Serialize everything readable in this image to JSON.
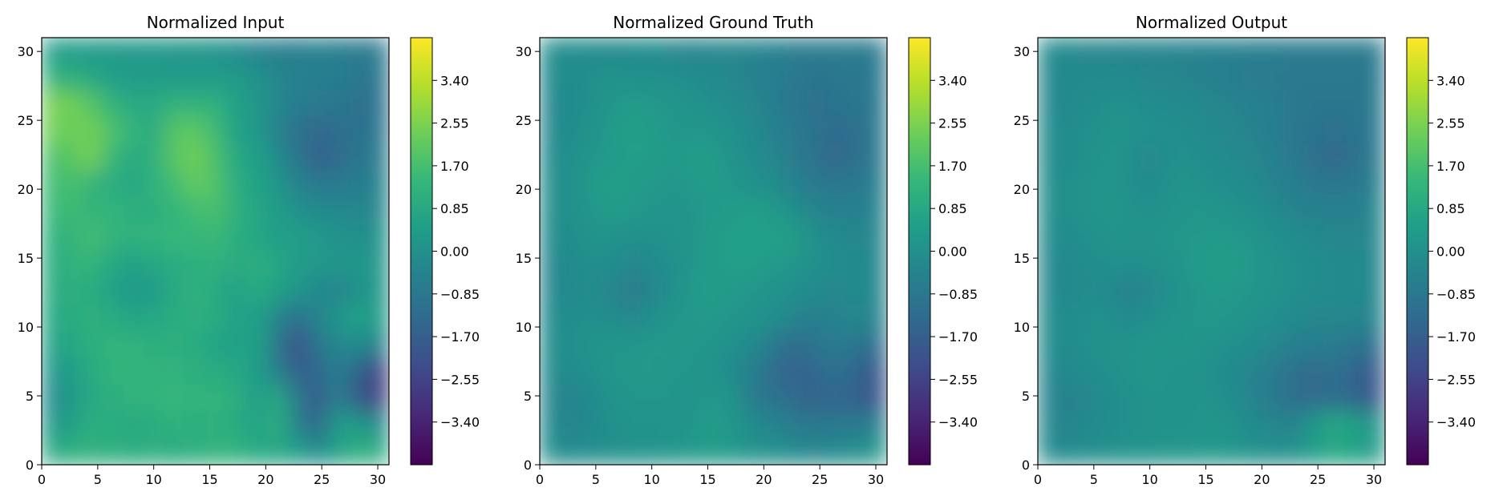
{
  "chart_data": [
    {
      "type": "heatmap",
      "title": "Normalized Input",
      "xlabel": "",
      "ylabel": "",
      "xlim": [
        0,
        31
      ],
      "ylim": [
        0,
        31
      ],
      "xticks": [
        0,
        5,
        10,
        15,
        20,
        25,
        30
      ],
      "yticks": [
        0,
        5,
        10,
        15,
        20,
        25,
        30
      ],
      "colormap": "viridis",
      "colorbar": {
        "range": [
          -4.25,
          4.25
        ],
        "ticks": [
          "3.40",
          "2.55",
          "1.70",
          "0.85",
          "0.00",
          "−0.85",
          "−1.70",
          "−2.55",
          "−3.40"
        ]
      },
      "grid_rows_top_to_bottom": [
        [
          0.4,
          0.4,
          0.3,
          0.3,
          0.2,
          0.3,
          0.2,
          0.2,
          0.1,
          -0.1,
          -0.4,
          -0.6,
          -0.6,
          -0.5,
          -0.6,
          -0.7,
          -0.8
        ],
        [
          1.2,
          1.1,
          0.8,
          0.5,
          0.4,
          0.4,
          0.3,
          0.3,
          0.4,
          0.3,
          0.1,
          -0.3,
          -0.5,
          -0.6,
          -0.6,
          -0.8,
          -0.9
        ],
        [
          2.5,
          2.4,
          1.9,
          1.2,
          0.9,
          0.9,
          1.3,
          1.2,
          1.2,
          0.6,
          0.3,
          -0.3,
          -0.6,
          -0.7,
          -0.9,
          -1.1,
          -1.0
        ],
        [
          2.4,
          2.3,
          2.4,
          1.8,
          1.3,
          0.9,
          2.0,
          2.1,
          1.6,
          0.6,
          0.3,
          -0.4,
          -1.1,
          -1.4,
          -1.2,
          -1.0,
          -0.9
        ],
        [
          1.8,
          2.0,
          2.5,
          1.3,
          0.9,
          1.1,
          2.0,
          2.4,
          1.8,
          0.8,
          0.6,
          -0.1,
          -0.9,
          -1.6,
          -1.3,
          -0.9,
          -0.7
        ],
        [
          1.5,
          1.8,
          1.2,
          1.0,
          0.8,
          1.2,
          1.6,
          2.2,
          1.9,
          1.0,
          0.7,
          0.2,
          -0.4,
          -0.8,
          -0.8,
          -0.6,
          -0.5
        ],
        [
          1.4,
          1.6,
          1.2,
          1.4,
          1.0,
          1.1,
          1.3,
          1.6,
          1.8,
          1.1,
          0.8,
          0.4,
          0.1,
          -0.2,
          -0.2,
          -0.3,
          -0.3
        ],
        [
          1.1,
          1.3,
          1.7,
          1.2,
          1.2,
          1.3,
          1.4,
          1.3,
          1.5,
          1.0,
          0.8,
          0.5,
          0.5,
          0.3,
          0.1,
          0.0,
          0.1
        ],
        [
          1.0,
          1.2,
          1.3,
          0.8,
          0.6,
          0.8,
          1.0,
          1.1,
          1.2,
          0.9,
          1.1,
          0.8,
          0.4,
          0.3,
          0.2,
          0.3,
          0.2
        ],
        [
          0.9,
          1.1,
          1.0,
          0.6,
          0.3,
          0.4,
          0.9,
          1.2,
          1.0,
          0.5,
          1.0,
          0.6,
          0.2,
          -0.2,
          -0.5,
          0.1,
          0.2
        ],
        [
          0.8,
          1.0,
          1.1,
          1.0,
          0.7,
          0.8,
          1.0,
          1.1,
          1.0,
          0.6,
          0.6,
          -0.3,
          -1.2,
          -0.4,
          0.2,
          0.6,
          0.4
        ],
        [
          0.6,
          0.8,
          1.1,
          1.3,
          1.2,
          1.1,
          1.1,
          1.0,
          0.7,
          0.5,
          0.7,
          -0.8,
          -2.2,
          -0.9,
          -0.3,
          -0.1,
          -0.5
        ],
        [
          0.2,
          0.5,
          1.0,
          1.3,
          1.3,
          1.2,
          1.2,
          1.1,
          1.0,
          0.8,
          0.5,
          -0.5,
          -1.7,
          -1.4,
          -0.6,
          -1.5,
          -2.6
        ],
        [
          -0.2,
          0.3,
          0.9,
          1.1,
          1.2,
          1.3,
          1.4,
          1.2,
          1.3,
          1.1,
          0.4,
          0.9,
          -0.7,
          -1.9,
          -0.5,
          -1.8,
          -2.8
        ],
        [
          0.2,
          0.6,
          1.1,
          1.0,
          0.9,
          1.0,
          1.2,
          1.1,
          1.2,
          1.0,
          0.6,
          1.1,
          -0.4,
          -1.6,
          0.4,
          0.3,
          -0.2
        ],
        [
          0.8,
          1.1,
          1.2,
          1.1,
          1.0,
          1.1,
          1.0,
          1.1,
          1.2,
          1.3,
          0.8,
          0.8,
          0.5,
          -0.2,
          0.6,
          1.2,
          0.9
        ]
      ]
    },
    {
      "type": "heatmap",
      "title": "Normalized Ground Truth",
      "xlabel": "",
      "ylabel": "",
      "xlim": [
        0,
        31
      ],
      "ylim": [
        0,
        31
      ],
      "xticks": [
        0,
        5,
        10,
        15,
        20,
        25,
        30
      ],
      "yticks": [
        0,
        5,
        10,
        15,
        20,
        25,
        30
      ],
      "colormap": "viridis",
      "colorbar": {
        "range": [
          -4.25,
          4.25
        ],
        "ticks": [
          "3.40",
          "2.55",
          "1.70",
          "0.85",
          "0.00",
          "−0.85",
          "−1.70",
          "−2.55",
          "−3.40"
        ]
      },
      "grid_rows_top_to_bottom": [
        [
          -0.1,
          -0.1,
          -0.2,
          -0.2,
          -0.2,
          -0.1,
          -0.3,
          -0.4,
          -0.3,
          -0.3,
          -0.4,
          -0.5,
          -0.7,
          -0.7,
          -0.7,
          -0.7,
          -0.8
        ],
        [
          -0.2,
          -0.1,
          0.0,
          0.1,
          0.0,
          0.0,
          0.0,
          -0.1,
          -0.2,
          -0.3,
          -0.5,
          -0.6,
          -0.8,
          -1.0,
          -0.9,
          -0.8,
          -0.9
        ],
        [
          -0.3,
          -0.2,
          0.0,
          0.2,
          0.4,
          0.3,
          0.2,
          0.1,
          0.0,
          -0.1,
          -0.3,
          -0.6,
          -0.9,
          -1.1,
          -1.0,
          -0.9,
          -0.8
        ],
        [
          -0.3,
          -0.1,
          0.1,
          0.3,
          0.6,
          0.4,
          0.2,
          0.2,
          0.2,
          0.0,
          -0.2,
          -0.5,
          -0.8,
          -1.0,
          -1.3,
          -1.1,
          -0.8
        ],
        [
          -0.2,
          0.0,
          0.2,
          0.3,
          0.5,
          0.4,
          0.3,
          0.4,
          0.4,
          0.1,
          -0.1,
          -0.3,
          -0.7,
          -1.1,
          -1.4,
          -1.1,
          -0.8
        ],
        [
          -0.1,
          0.0,
          0.3,
          0.6,
          0.4,
          0.3,
          0.2,
          0.3,
          0.4,
          0.2,
          0.0,
          -0.1,
          -0.5,
          -0.8,
          -0.9,
          -0.8,
          -0.6
        ],
        [
          -0.1,
          0.0,
          0.2,
          0.4,
          0.3,
          0.2,
          0.1,
          0.2,
          0.3,
          0.4,
          0.5,
          0.3,
          0.0,
          -0.4,
          -0.5,
          -0.5,
          -0.4
        ],
        [
          -0.2,
          -0.1,
          0.1,
          0.1,
          0.0,
          0.0,
          0.1,
          0.2,
          0.4,
          0.5,
          0.6,
          0.6,
          0.4,
          0.0,
          -0.2,
          -0.3,
          -0.3
        ],
        [
          -0.3,
          -0.2,
          0.0,
          -0.1,
          -0.3,
          -0.2,
          0.0,
          0.2,
          0.4,
          0.5,
          0.5,
          0.3,
          0.2,
          0.0,
          -0.1,
          -0.2,
          -0.3
        ],
        [
          -0.3,
          -0.2,
          -0.1,
          -0.3,
          -0.7,
          -0.4,
          0.0,
          0.3,
          0.4,
          0.3,
          0.2,
          0.1,
          0.0,
          -0.2,
          -0.3,
          -0.2,
          -0.3
        ],
        [
          -0.2,
          -0.1,
          0.0,
          -0.1,
          -0.3,
          0.0,
          0.2,
          0.3,
          0.3,
          0.2,
          0.1,
          0.0,
          -0.4,
          -0.6,
          -0.4,
          -0.3,
          -0.4
        ],
        [
          -0.1,
          0.0,
          0.1,
          0.2,
          0.2,
          0.3,
          0.3,
          0.2,
          0.2,
          0.0,
          -0.2,
          -0.8,
          -1.3,
          -0.9,
          -0.7,
          -0.9,
          -1.2
        ],
        [
          -0.2,
          -0.1,
          0.0,
          0.2,
          0.3,
          0.3,
          0.2,
          0.2,
          0.1,
          -0.2,
          -0.6,
          -1.3,
          -1.6,
          -1.4,
          -1.0,
          -1.5,
          -1.9
        ],
        [
          -0.3,
          -0.5,
          -0.2,
          0.1,
          0.2,
          0.2,
          0.2,
          0.1,
          0.3,
          0.1,
          -0.8,
          -1.0,
          -1.3,
          -1.6,
          -1.4,
          -1.6,
          -2.1
        ],
        [
          -0.2,
          -0.4,
          -0.2,
          0.0,
          0.1,
          0.1,
          0.1,
          0.2,
          0.4,
          0.2,
          -0.2,
          -0.4,
          -0.7,
          -0.9,
          -0.8,
          -0.8,
          -0.6
        ],
        [
          -0.1,
          -0.2,
          -0.1,
          0.0,
          0.1,
          0.1,
          0.2,
          0.3,
          0.4,
          0.3,
          0.1,
          0.0,
          -0.2,
          -0.3,
          -0.2,
          0.0,
          0.2
        ]
      ]
    },
    {
      "type": "heatmap",
      "title": "Normalized Output",
      "xlabel": "",
      "ylabel": "",
      "xlim": [
        0,
        31
      ],
      "ylim": [
        0,
        31
      ],
      "xticks": [
        0,
        5,
        10,
        15,
        20,
        25,
        30
      ],
      "yticks": [
        0,
        5,
        10,
        15,
        20,
        25,
        30
      ],
      "colormap": "viridis",
      "colorbar": {
        "range": [
          -4.25,
          4.25
        ],
        "ticks": [
          "3.40",
          "2.55",
          "1.70",
          "0.85",
          "0.00",
          "−0.85",
          "−1.70",
          "−2.55",
          "−3.40"
        ]
      },
      "grid_rows_top_to_bottom": [
        [
          -0.2,
          -0.2,
          -0.3,
          -0.3,
          -0.4,
          -0.4,
          -0.4,
          -0.5,
          -0.5,
          -0.5,
          -0.6,
          -0.6,
          -0.7,
          -0.7,
          -0.7,
          -0.7,
          -0.8
        ],
        [
          -0.3,
          -0.2,
          -0.2,
          -0.2,
          -0.2,
          -0.3,
          -0.3,
          -0.4,
          -0.5,
          -0.6,
          -0.7,
          -0.7,
          -0.8,
          -0.8,
          -0.8,
          -0.8,
          -0.9
        ],
        [
          -0.3,
          -0.2,
          -0.1,
          0.0,
          0.0,
          -0.1,
          -0.2,
          -0.2,
          -0.3,
          -0.4,
          -0.5,
          -0.6,
          -0.8,
          -0.9,
          -0.9,
          -0.9,
          -0.8
        ],
        [
          -0.2,
          -0.1,
          0.0,
          0.1,
          0.1,
          0.0,
          0.0,
          -0.1,
          -0.2,
          -0.3,
          -0.4,
          -0.6,
          -0.8,
          -1.0,
          -1.1,
          -1.0,
          -0.8
        ],
        [
          -0.2,
          -0.1,
          0.0,
          0.2,
          0.0,
          -0.3,
          0.0,
          0.0,
          -0.1,
          -0.2,
          -0.3,
          -0.5,
          -0.8,
          -1.1,
          -1.4,
          -1.1,
          -0.8
        ],
        [
          -0.1,
          0.0,
          0.1,
          0.2,
          0.0,
          -0.2,
          0.1,
          0.1,
          0.0,
          -0.1,
          -0.2,
          -0.4,
          -0.6,
          -0.8,
          -0.9,
          -0.8,
          -0.6
        ],
        [
          -0.1,
          0.0,
          0.1,
          0.2,
          0.1,
          0.0,
          0.1,
          0.2,
          0.2,
          0.1,
          0.0,
          -0.2,
          -0.4,
          -0.5,
          -0.5,
          -0.5,
          -0.4
        ],
        [
          -0.2,
          -0.1,
          0.0,
          0.1,
          0.1,
          0.1,
          0.2,
          0.3,
          0.3,
          0.3,
          0.2,
          0.0,
          -0.1,
          -0.2,
          -0.3,
          -0.3,
          -0.3
        ],
        [
          -0.3,
          -0.2,
          -0.1,
          0.0,
          0.0,
          0.0,
          0.1,
          0.3,
          0.4,
          0.4,
          0.3,
          0.1,
          0.0,
          -0.1,
          -0.2,
          -0.2,
          -0.3
        ],
        [
          -0.3,
          -0.2,
          -0.1,
          -0.2,
          -0.6,
          -0.3,
          0.0,
          0.2,
          0.3,
          0.3,
          0.2,
          0.1,
          0.0,
          -0.1,
          -0.2,
          -0.2,
          -0.3
        ],
        [
          -0.2,
          -0.1,
          0.0,
          0.0,
          -0.2,
          0.0,
          0.1,
          0.2,
          0.3,
          0.2,
          0.1,
          0.0,
          -0.2,
          -0.3,
          -0.3,
          -0.3,
          -0.4
        ],
        [
          -0.2,
          -0.1,
          0.0,
          0.1,
          0.1,
          0.2,
          0.2,
          0.2,
          0.1,
          0.0,
          -0.1,
          -0.3,
          -0.5,
          -0.6,
          -0.7,
          -0.9,
          -1.2
        ],
        [
          -0.3,
          -0.2,
          -0.1,
          0.0,
          0.1,
          0.2,
          0.1,
          0.1,
          0.0,
          -0.2,
          -0.4,
          -0.7,
          -1.1,
          -1.3,
          -1.1,
          -1.4,
          -1.9
        ],
        [
          -0.4,
          -0.5,
          -0.3,
          -0.1,
          0.0,
          0.1,
          0.1,
          0.1,
          0.1,
          -0.1,
          -0.4,
          -0.8,
          -1.2,
          -1.3,
          -1.2,
          -1.5,
          -2.0
        ],
        [
          -0.3,
          -0.4,
          -0.2,
          -0.1,
          0.0,
          0.1,
          0.1,
          0.1,
          0.2,
          0.1,
          -0.2,
          -0.3,
          -0.5,
          0.3,
          0.8,
          0.6,
          0.1
        ],
        [
          -0.2,
          -0.2,
          -0.1,
          0.0,
          0.1,
          0.1,
          0.2,
          0.2,
          0.3,
          0.2,
          0.1,
          0.0,
          0.0,
          0.4,
          0.8,
          0.7,
          0.3
        ]
      ]
    }
  ]
}
